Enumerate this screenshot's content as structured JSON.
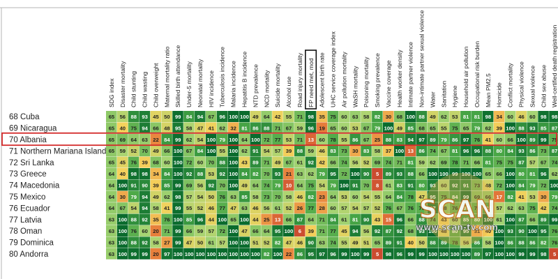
{
  "chart_data": {
    "type": "heatmap",
    "columns": [
      "SDG index",
      "Disaster mortality",
      "Child stunting",
      "Child wasting",
      "Child overweight",
      "Maternal mortality ratio",
      "Skilled birth attendance",
      "Under-5 mortality",
      "Neonatal mortality",
      "HIV incidence",
      "Tuberculosis incidence",
      "Malaria incidence",
      "Hepatitis B incidence",
      "NTD prevalence",
      "NCD mortality",
      "Suicide mortality",
      "Alcohol use",
      "Road injury mortality",
      "FP need met, mod",
      "Adolescent birth rate",
      "UHC service coverage index",
      "Air pollution mortality",
      "WaSH mortality",
      "Poisoning mortality",
      "Smoking prevalence",
      "Vaccine coverage",
      "Health worker density",
      "Intimate partner violence",
      "Non-intimate partner sexual violence",
      "Water",
      "Sanitation",
      "Hygiene",
      "Household air pollution",
      "Occupational risk burden",
      "Mean PM2.5",
      "Homicide",
      "Conflict mortality",
      "Physical violence",
      "Sexual violence",
      "Child sex abuse",
      "Well-certified death registration"
    ],
    "rows": [
      {
        "label": "68 Cuba",
        "values": [
          65,
          56,
          88,
          93,
          45,
          50,
          99,
          84,
          94,
          67,
          96,
          100,
          100,
          49,
          64,
          42,
          55,
          71,
          98,
          35,
          75,
          60,
          63,
          58,
          82,
          30,
          68,
          100,
          88,
          49,
          62,
          53,
          81,
          81,
          98,
          34,
          60,
          46,
          60,
          98,
          98
        ]
      },
      {
        "label": "69 Nicaragua",
        "values": [
          65,
          40,
          75,
          94,
          66,
          48,
          95,
          58,
          47,
          41,
          62,
          32,
          81,
          86,
          88,
          71,
          67,
          59,
          96,
          19,
          65,
          60,
          53,
          67,
          79,
          100,
          49,
          85,
          68,
          65,
          55,
          75,
          65,
          79,
          62,
          39,
          100,
          88,
          93,
          85,
          87
        ]
      },
      {
        "label": "70 Albania",
        "values": [
          65,
          69,
          64,
          63,
          22,
          84,
          99,
          62,
          54,
          100,
          79,
          100,
          64,
          100,
          72,
          77,
          53,
          71,
          13,
          60,
          78,
          55,
          86,
          67,
          25,
          88,
          83,
          94,
          97,
          89,
          79,
          86,
          97,
          76,
          41,
          60,
          66,
          100,
          89,
          99,
          75
        ]
      },
      {
        "label": "71 Northern Mariana Islands",
        "values": [
          65,
          59,
          52,
          70,
          49,
          66,
          100,
          67,
          84,
          100,
          55,
          100,
          62,
          91,
          54,
          57,
          39,
          88,
          59,
          46,
          83,
          73,
          30,
          83,
          58,
          37,
          100,
          13,
          86,
          74,
          67,
          81,
          96,
          96,
          88,
          80,
          84,
          93,
          86,
          73,
          87
        ]
      },
      {
        "label": "72 Sri Lanka",
        "values": [
          65,
          45,
          76,
          39,
          68,
          60,
          100,
          72,
          60,
          70,
          88,
          100,
          43,
          89,
          71,
          49,
          67,
          61,
          92,
          42,
          66,
          74,
          56,
          52,
          69,
          74,
          71,
          81,
          59,
          62,
          69,
          78,
          71,
          66,
          81,
          75,
          75,
          87,
          57,
          67,
          74
        ]
      },
      {
        "label": "73 Greece",
        "values": [
          64,
          40,
          98,
          98,
          34,
          84,
          100,
          92,
          88,
          53,
          92,
          100,
          84,
          82,
          70,
          93,
          21,
          63,
          62,
          79,
          95,
          72,
          100,
          90,
          5,
          89,
          93,
          88,
          66,
          100,
          100,
          99,
          100,
          100,
          65,
          66,
          100,
          80,
          81,
          96,
          62
        ]
      },
      {
        "label": "74 Macedonia",
        "values": [
          64,
          100,
          91,
          90,
          39,
          85,
          99,
          69,
          56,
          92,
          70,
          100,
          49,
          64,
          74,
          79,
          10,
          64,
          75,
          54,
          79,
          100,
          91,
          70,
          8,
          61,
          83,
          91,
          80,
          93,
          60,
          92,
          91,
          73,
          48,
          72,
          100,
          84,
          79,
          72,
          100
        ]
      },
      {
        "label": "75 Mexico",
        "values": [
          64,
          30,
          79,
          94,
          49,
          62,
          98,
          57,
          54,
          50,
          76,
          63,
          85,
          58,
          73,
          70,
          58,
          46,
          82,
          23,
          64,
          53,
          60,
          54,
          55,
          64,
          84,
          78,
          47,
          95,
          75,
          84,
          99,
          69,
          66,
          17,
          82,
          41,
          53,
          30,
          79
        ]
      },
      {
        "label": "76 Ecuador",
        "values": [
          64,
          67,
          54,
          94,
          58,
          41,
          99,
          55,
          52,
          46,
          77,
          47,
          63,
          46,
          56,
          61,
          52,
          26,
          77,
          28,
          60,
          57,
          54,
          57,
          52,
          76,
          67,
          76,
          76,
          97,
          68,
          76,
          80,
          78,
          82,
          57,
          62,
          63,
          75,
          42,
          74
        ]
      },
      {
        "label": "77 Latvia",
        "values": [
          63,
          100,
          88,
          92,
          35,
          76,
          100,
          85,
          96,
          44,
          100,
          65,
          100,
          44,
          25,
          13,
          66,
          87,
          64,
          71,
          84,
          61,
          81,
          90,
          43,
          15,
          96,
          66,
          88,
          74,
          43,
          60,
          85,
          80,
          100,
          61,
          100,
          87,
          66,
          89,
          99
        ]
      },
      {
        "label": "78 Oman",
        "values": [
          63,
          100,
          76,
          60,
          20,
          71,
          99,
          66,
          59,
          57,
          72,
          100,
          47,
          66,
          64,
          95,
          100,
          6,
          39,
          71,
          77,
          45,
          94,
          56,
          92,
          87,
          92,
          68,
          93,
          100,
          48,
          80,
          95,
          31,
          40,
          100,
          93,
          90,
          100,
          95,
          76
        ]
      },
      {
        "label": "79 Dominica",
        "values": [
          63,
          100,
          88,
          92,
          58,
          27,
          99,
          47,
          50,
          61,
          57,
          100,
          100,
          51,
          52,
          82,
          47,
          46,
          90,
          63,
          74,
          55,
          49,
          51,
          65,
          89,
          91,
          40,
          50,
          88,
          89,
          78,
          56,
          86,
          58,
          100,
          86,
          88,
          86,
          82,
          76
        ]
      },
      {
        "label": "80 Andorra",
        "values": [
          63,
          100,
          99,
          99,
          20,
          97,
          100,
          100,
          100,
          100,
          100,
          100,
          100,
          100,
          82,
          100,
          22,
          86,
          95,
          97,
          96,
          99,
          100,
          99,
          5,
          98,
          96,
          99,
          99,
          100,
          100,
          100,
          100,
          89,
          97,
          100,
          100,
          99,
          99,
          98,
          5
        ]
      }
    ],
    "scale_min": 0,
    "scale_max": 100,
    "highlighted_row": "70 Albania",
    "highlighted_column": "FP need met, mod",
    "color_scale": [
      "#c0392b",
      "#e8803c",
      "#f5d25c",
      "#a6d473",
      "#49a746",
      "#0a6b2d"
    ]
  },
  "watermark": {
    "logo_text": "SCAN",
    "url_text": "www.scan-tv.com"
  }
}
